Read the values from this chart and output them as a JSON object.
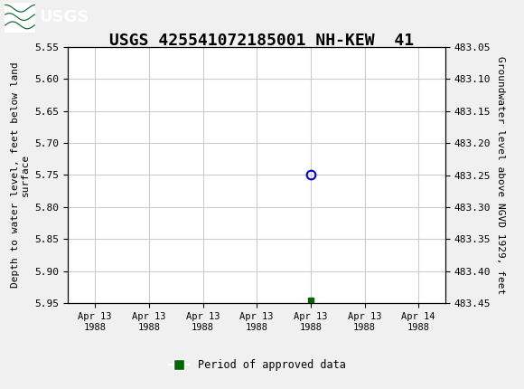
{
  "title": "USGS 425541072185001 NH-KEW  41",
  "title_fontsize": 13,
  "bg_color": "#f0f0f0",
  "plot_bg_color": "#ffffff",
  "header_color": "#1a6b3c",
  "left_ylabel": "Depth to water level, feet below land\nsurface",
  "right_ylabel": "Groundwater level above NGVD 1929, feet",
  "ylim_left": [
    5.55,
    5.95
  ],
  "ylim_right": [
    483.05,
    483.45
  ],
  "yticks_left": [
    5.55,
    5.6,
    5.65,
    5.7,
    5.75,
    5.8,
    5.85,
    5.9,
    5.95
  ],
  "yticks_right": [
    483.45,
    483.4,
    483.35,
    483.3,
    483.25,
    483.2,
    483.15,
    483.1,
    483.05
  ],
  "data_point_x": 4.0,
  "data_point_y": 5.75,
  "approved_marker_x": 4.0,
  "approved_marker_y": 5.945,
  "xtick_labels": [
    "Apr 13\n1988",
    "Apr 13\n1988",
    "Apr 13\n1988",
    "Apr 13\n1988",
    "Apr 13\n1988",
    "Apr 13\n1988",
    "Apr 14\n1988"
  ],
  "xtick_positions": [
    0,
    1,
    2,
    3,
    4,
    5,
    6
  ],
  "xlim": [
    -0.5,
    6.5
  ],
  "grid_color": "#cccccc",
  "point_color": "#0000cc",
  "approved_color": "#006600",
  "legend_label": "Period of approved data",
  "font_family": "monospace"
}
